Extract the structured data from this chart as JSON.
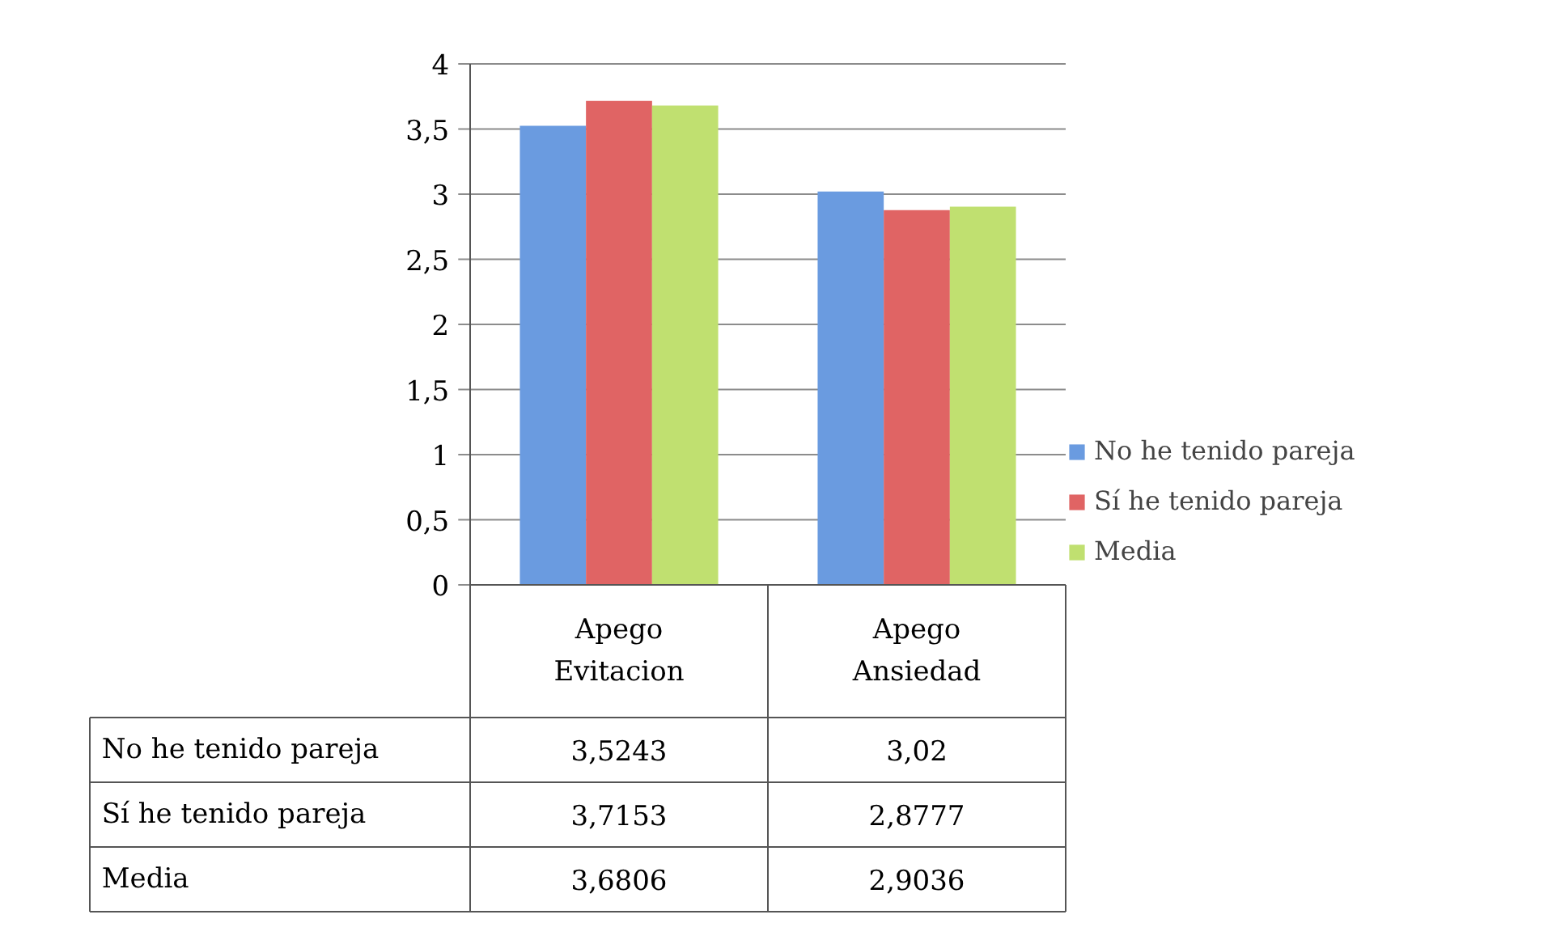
{
  "chart_data": {
    "type": "bar",
    "categories": [
      "Apego Evitacion",
      "Apego Ansiedad"
    ],
    "series": [
      {
        "name": "No he tenido pareja",
        "color": "#6a9be0",
        "values": [
          3.5243,
          3.02
        ],
        "value_labels": [
          "3,5243",
          "3,02"
        ]
      },
      {
        "name": "Sí he tenido pareja",
        "color": "#e06464",
        "values": [
          3.7153,
          2.8777
        ],
        "value_labels": [
          "3,7153",
          "2,8777"
        ]
      },
      {
        "name": "Media",
        "color": "#c0e070",
        "values": [
          3.6806,
          2.9036
        ],
        "value_labels": [
          "3,6806",
          "2,9036"
        ]
      }
    ],
    "ylim": [
      0,
      4
    ],
    "yticks": [
      0,
      {
        "value": 0.5,
        "label": "0,5"
      },
      1,
      {
        "value": 1.5,
        "label": "1,5"
      },
      2,
      {
        "value": 2.5,
        "label": "2,5"
      },
      3,
      {
        "value": 3.5,
        "label": "3,5"
      },
      4
    ],
    "grid": "y",
    "legend": "right"
  }
}
